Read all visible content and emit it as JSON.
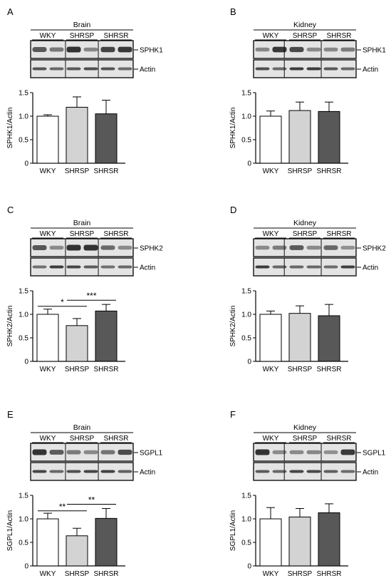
{
  "figure": {
    "panels": [
      {
        "letter": "A",
        "tissue": "Brain",
        "protein": "SPHK1",
        "loading": "Actin",
        "ylabel": "SPHK1/Actin"
      },
      {
        "letter": "B",
        "tissue": "Kidney",
        "protein": "SPHK1",
        "loading": "Actin",
        "ylabel": "SPHK1/Actin"
      },
      {
        "letter": "C",
        "tissue": "Brain",
        "protein": "SPHK2",
        "loading": "Actin",
        "ylabel": "SPHK2/Actin"
      },
      {
        "letter": "D",
        "tissue": "Kidney",
        "protein": "SPHK2",
        "loading": "Actin",
        "ylabel": "SPHK2/Actin"
      },
      {
        "letter": "E",
        "tissue": "Brain",
        "protein": "SGPL1",
        "loading": "Actin",
        "ylabel": "SGPL1/Actin"
      },
      {
        "letter": "F",
        "tissue": "Kidney",
        "protein": "SGPL1",
        "loading": "Actin",
        "ylabel": "SGPL1/Actin"
      }
    ]
  },
  "chart_data": [
    {
      "type": "bar",
      "panel": "A",
      "categories": [
        "WKY",
        "SHRSP",
        "SHRSR"
      ],
      "values": [
        1.0,
        1.19,
        1.05
      ],
      "errors": [
        0.03,
        0.22,
        0.29
      ],
      "colors": [
        "#ffffff",
        "#d3d3d3",
        "#585858"
      ],
      "xlabel": "",
      "ylabel": "SPHK1/Actin",
      "ylim": [
        0,
        1.5
      ],
      "yticks": [
        "0",
        "0.5",
        "1.0",
        "1.5"
      ],
      "significance": []
    },
    {
      "type": "bar",
      "panel": "B",
      "categories": [
        "WKY",
        "SHRSP",
        "SHRSR"
      ],
      "values": [
        1.0,
        1.12,
        1.1
      ],
      "errors": [
        0.11,
        0.18,
        0.2
      ],
      "colors": [
        "#ffffff",
        "#d3d3d3",
        "#585858"
      ],
      "xlabel": "",
      "ylabel": "SPHK1/Actin",
      "ylim": [
        0,
        1.5
      ],
      "yticks": [
        "0",
        "0.5",
        "1.0",
        "1.5"
      ],
      "significance": []
    },
    {
      "type": "bar",
      "panel": "C",
      "categories": [
        "WKY",
        "SHRSP",
        "SHRSR"
      ],
      "values": [
        1.0,
        0.76,
        1.07
      ],
      "errors": [
        0.11,
        0.15,
        0.14
      ],
      "colors": [
        "#ffffff",
        "#d3d3d3",
        "#585858"
      ],
      "xlabel": "",
      "ylabel": "SPHK2/Actin",
      "ylim": [
        0,
        1.5
      ],
      "yticks": [
        "0",
        "0.5",
        "1.0",
        "1.5"
      ],
      "significance": [
        {
          "from": 0,
          "to": 1,
          "at": 1.17,
          "label": "*"
        },
        {
          "from": 1,
          "to": 2,
          "at": 1.3,
          "label": "***"
        }
      ]
    },
    {
      "type": "bar",
      "panel": "D",
      "categories": [
        "WKY",
        "SHRSP",
        "SHRSR"
      ],
      "values": [
        1.0,
        1.02,
        0.97
      ],
      "errors": [
        0.07,
        0.16,
        0.24
      ],
      "colors": [
        "#ffffff",
        "#d3d3d3",
        "#585858"
      ],
      "xlabel": "",
      "ylabel": "SPHK2/Actin",
      "ylim": [
        0,
        1.5
      ],
      "yticks": [
        "0",
        "0.5",
        "1.0",
        "1.5"
      ],
      "significance": []
    },
    {
      "type": "bar",
      "panel": "E",
      "categories": [
        "WKY",
        "SHRSP",
        "SHRSR"
      ],
      "values": [
        1.0,
        0.64,
        1.01
      ],
      "errors": [
        0.12,
        0.16,
        0.21
      ],
      "colors": [
        "#ffffff",
        "#d3d3d3",
        "#585858"
      ],
      "xlabel": "",
      "ylabel": "SGPL1/Actin",
      "ylim": [
        0,
        1.5
      ],
      "yticks": [
        "0",
        "0.5",
        "1.0",
        "1.5"
      ],
      "significance": [
        {
          "from": 0,
          "to": 1,
          "at": 1.17,
          "label": "**"
        },
        {
          "from": 1,
          "to": 2,
          "at": 1.31,
          "label": "**"
        }
      ]
    },
    {
      "type": "bar",
      "panel": "F",
      "categories": [
        "WKY",
        "SHRSP",
        "SHRSR"
      ],
      "values": [
        1.0,
        1.04,
        1.13
      ],
      "errors": [
        0.24,
        0.18,
        0.19
      ],
      "colors": [
        "#ffffff",
        "#d3d3d3",
        "#585858"
      ],
      "xlabel": "",
      "ylabel": "SGPL1/Actin",
      "ylim": [
        0,
        1.5
      ],
      "yticks": [
        "0",
        "0.5",
        "1.0",
        "1.5"
      ],
      "significance": []
    }
  ]
}
